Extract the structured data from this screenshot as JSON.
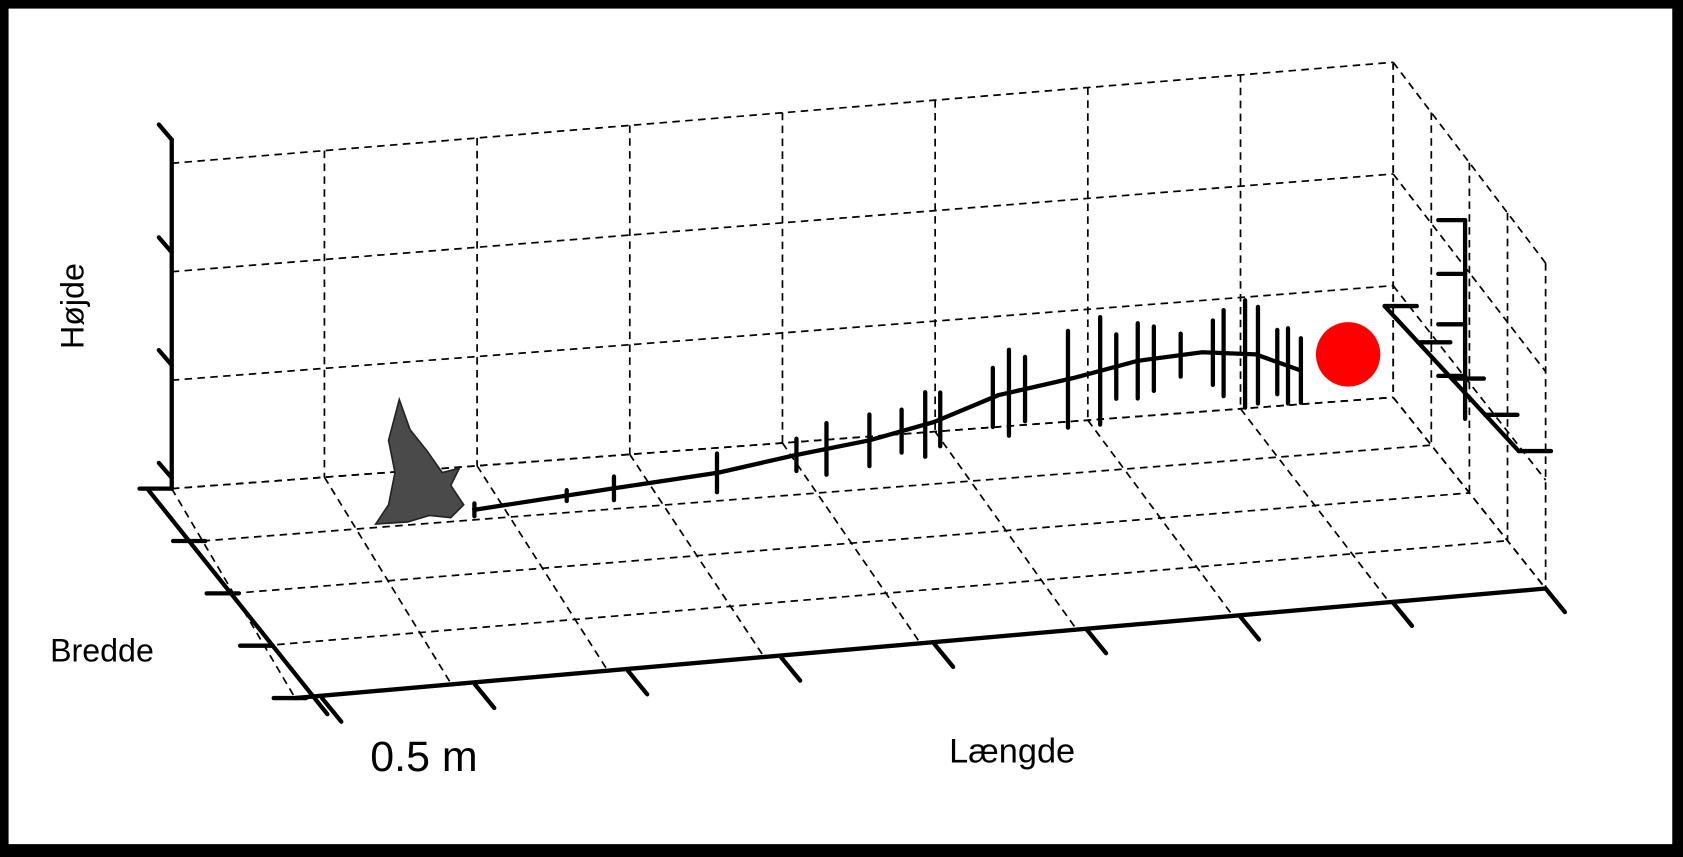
{
  "labels": {
    "height": "Højde",
    "width": "Bredde",
    "scale": "0.5 m",
    "length": "Længde"
  }
}
